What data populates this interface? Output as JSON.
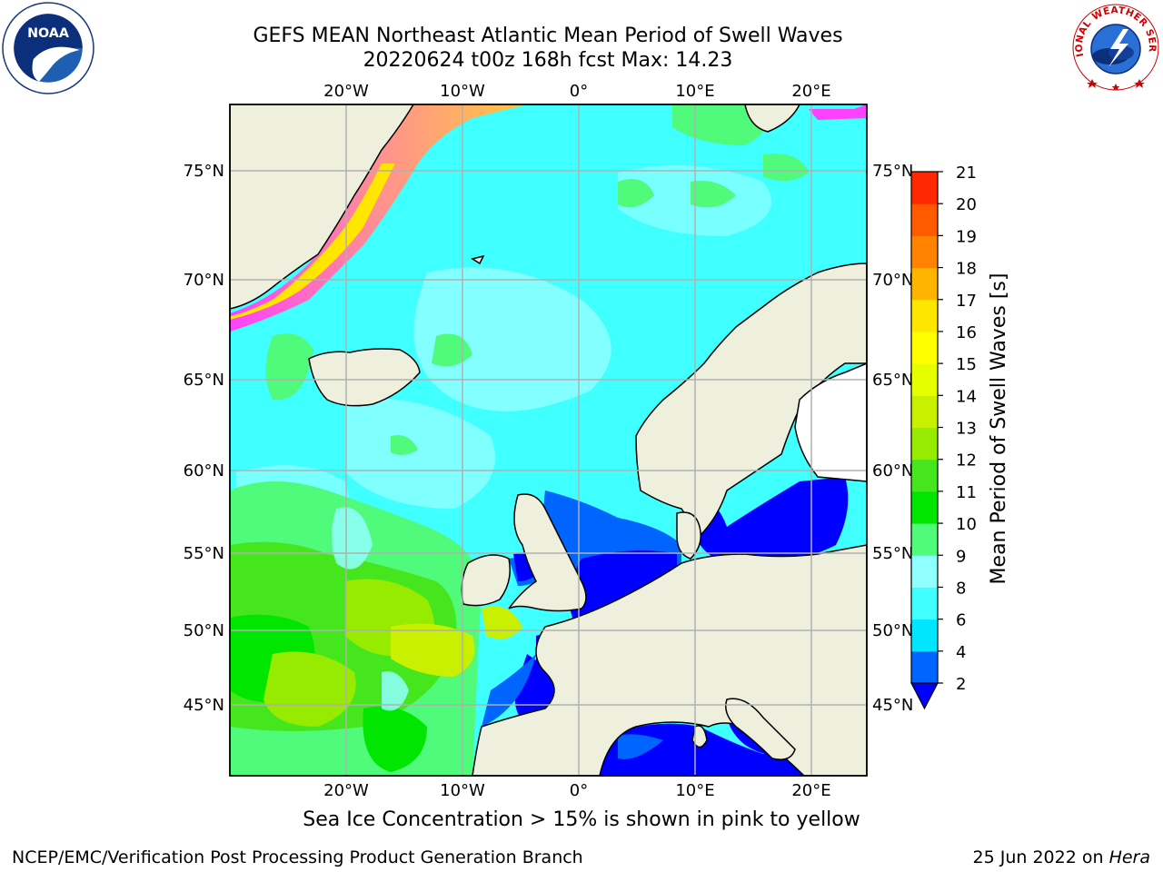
{
  "header": {
    "title_line1": "GEFS MEAN Northeast Atlantic Mean Period of Swell Waves",
    "title_line2": "20220624 t00z 168h fcst   Max: 14.23"
  },
  "map": {
    "lon_labels": [
      "20°W",
      "10°W",
      "0°",
      "10°E",
      "20°E"
    ],
    "lat_labels": [
      "75°N",
      "70°N",
      "65°N",
      "60°N",
      "55°N",
      "50°N",
      "45°N"
    ],
    "lon_ticks": [
      -20,
      -10,
      0,
      10,
      20
    ],
    "lat_ticks": [
      75,
      70,
      65,
      60,
      55,
      50,
      45
    ]
  },
  "colorbar": {
    "label": "Mean Period of Swell Waves [s]",
    "ticks": [
      "2",
      "4",
      "6",
      "8",
      "9",
      "10",
      "11",
      "12",
      "13",
      "14",
      "15",
      "16",
      "17",
      "18",
      "19",
      "20",
      "21"
    ],
    "colors": [
      "#0064ff",
      "#00e6ff",
      "#40ffff",
      "#90ffff",
      "#50fa7b",
      "#00e600",
      "#46e61e",
      "#96eb00",
      "#c8f000",
      "#e6ff00",
      "#ffff00",
      "#ffe600",
      "#ffb400",
      "#ff8200",
      "#ff5a00",
      "#ff2800"
    ],
    "extend_color": "#0000ff"
  },
  "footer": {
    "caption": "Sea Ice Concentration > 15% is shown in pink to yellow",
    "credit_left": "NCEP/EMC/Verification Post Processing Product Generation Branch",
    "credit_date": "25 Jun 2022 on ",
    "credit_machine": "Hera"
  },
  "logos": {
    "noaa_text": "NOAA",
    "nws_text": "NATIONAL WEATHER SERVICE"
  }
}
